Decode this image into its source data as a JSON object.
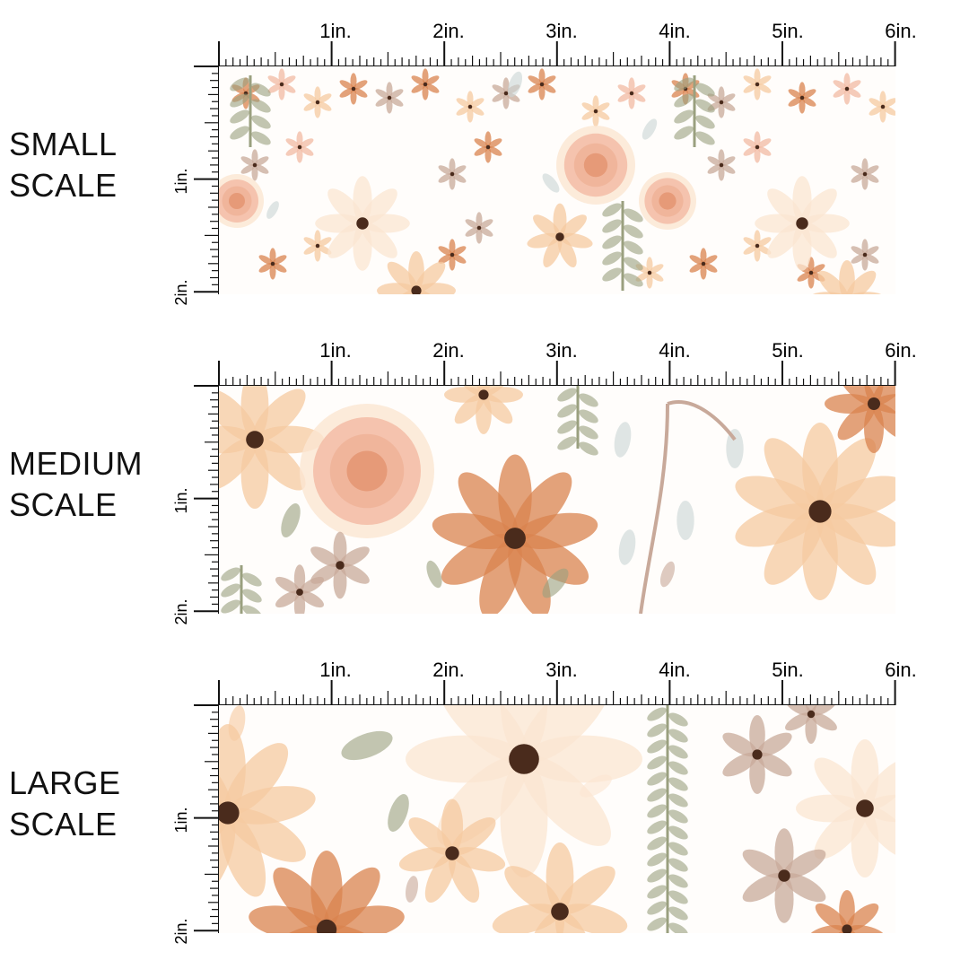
{
  "sections": [
    {
      "label_line1": "SMALL",
      "label_line2": "SCALE",
      "top_ruler": [
        "1in.",
        "2in.",
        "3in.",
        "4in.",
        "5in.",
        "6in."
      ],
      "side_ruler": [
        "1in.",
        "2in."
      ]
    },
    {
      "label_line1": "MEDIUM",
      "label_line2": "SCALE",
      "top_ruler": [
        "1in.",
        "2in.",
        "3in.",
        "4in.",
        "5in.",
        "6in."
      ],
      "side_ruler": [
        "1in.",
        "2in."
      ]
    },
    {
      "label_line1": "LARGE",
      "label_line2": "SCALE",
      "top_ruler": [
        "1in.",
        "2in.",
        "3in.",
        "4in.",
        "5in.",
        "6in."
      ],
      "side_ruler": [
        "1in.",
        "2in."
      ]
    }
  ],
  "colors": {
    "peach": "#f6c9a0",
    "rust": "#d9834f",
    "blush": "#f2b9a3",
    "taupe": "#c8a99a",
    "sage": "#9aa07f",
    "mist": "#c9d6d6",
    "cream": "#fbe6d2",
    "center": "#4a2b1c"
  }
}
